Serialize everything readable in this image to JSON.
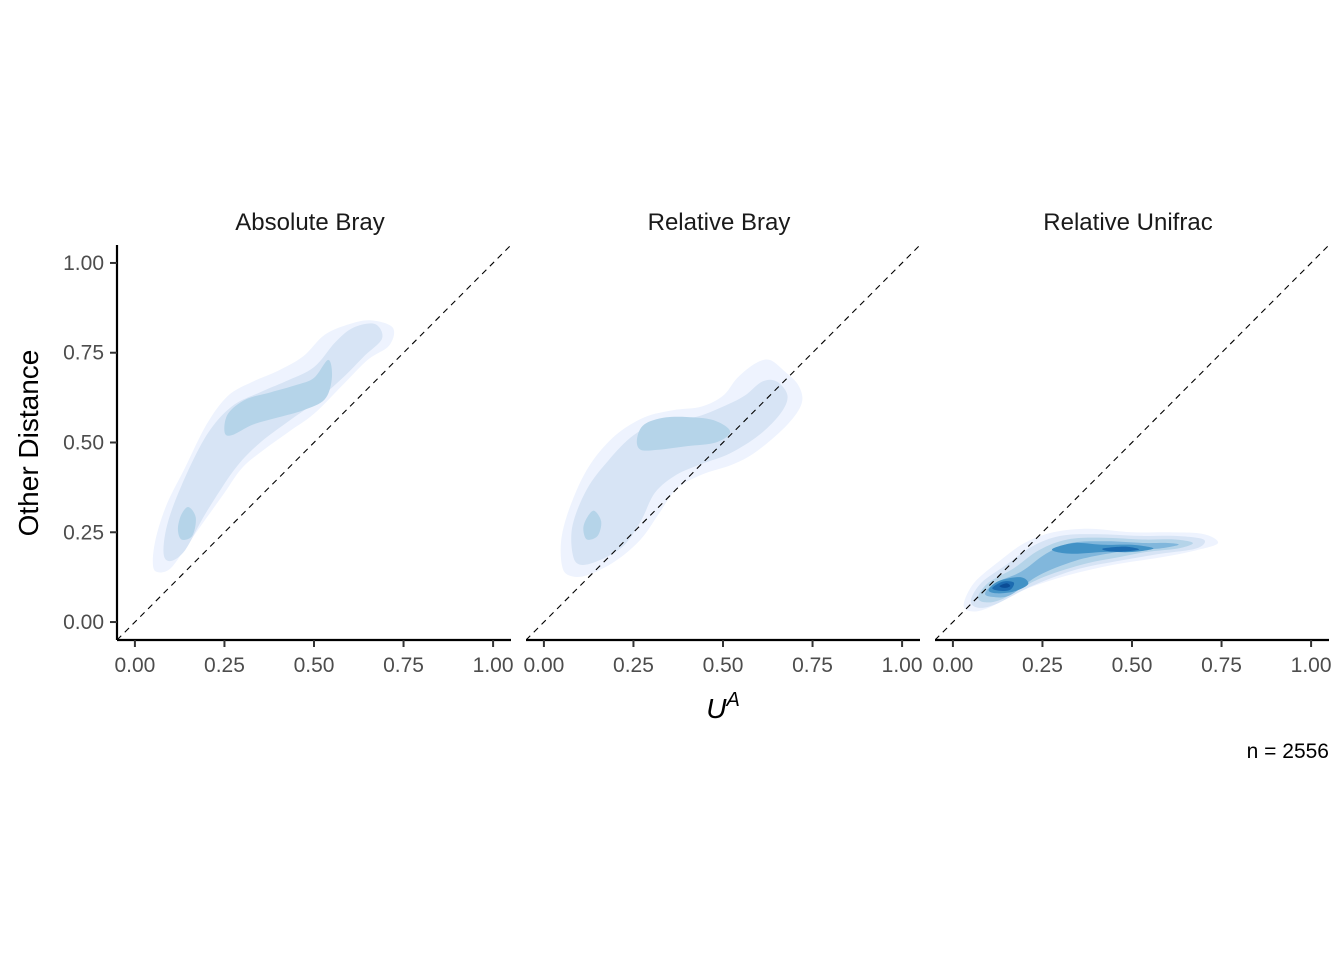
{
  "chart_data": {
    "type": "contour",
    "ylabel": "Other Distance",
    "xlabel_base": "U",
    "xlabel_sup": "A",
    "caption": "n = 2556",
    "xlim": [
      -0.05,
      1.05
    ],
    "ylim": [
      -0.05,
      1.05
    ],
    "x_ticks": [
      0,
      0.25,
      0.5,
      0.75,
      1
    ],
    "x_tick_labels": [
      "0.00",
      "0.25",
      "0.50",
      "0.75",
      "1.00"
    ],
    "y_ticks": [
      0,
      0.25,
      0.5,
      0.75,
      1
    ],
    "y_tick_labels": [
      "0.00",
      "0.25",
      "0.50",
      "0.75",
      "1.00"
    ],
    "reference_line": {
      "slope": 1,
      "intercept": 0,
      "style": "dashed"
    },
    "level_colors": [
      "#eef3fe",
      "#d7e4f5",
      "#b5d4e9",
      "#81b7dc",
      "#4292c6",
      "#1c6bb0",
      "#0b4d96"
    ],
    "panels": [
      {
        "title": "Absolute Bray",
        "levels": [
          {
            "level": 1,
            "points": [
              [
                0.05,
                0.17
              ],
              [
                0.06,
                0.24
              ],
              [
                0.09,
                0.33
              ],
              [
                0.14,
                0.43
              ],
              [
                0.2,
                0.55
              ],
              [
                0.26,
                0.63
              ],
              [
                0.33,
                0.67
              ],
              [
                0.4,
                0.7
              ],
              [
                0.47,
                0.74
              ],
              [
                0.53,
                0.8
              ],
              [
                0.6,
                0.83
              ],
              [
                0.66,
                0.84
              ],
              [
                0.72,
                0.82
              ],
              [
                0.71,
                0.77
              ],
              [
                0.65,
                0.73
              ],
              [
                0.58,
                0.66
              ],
              [
                0.5,
                0.58
              ],
              [
                0.43,
                0.53
              ],
              [
                0.36,
                0.48
              ],
              [
                0.3,
                0.43
              ],
              [
                0.25,
                0.36
              ],
              [
                0.2,
                0.29
              ],
              [
                0.15,
                0.22
              ],
              [
                0.1,
                0.15
              ],
              [
                0.06,
                0.14
              ]
            ]
          },
          {
            "level": 2,
            "points": [
              [
                0.08,
                0.19
              ],
              [
                0.09,
                0.27
              ],
              [
                0.13,
                0.38
              ],
              [
                0.2,
                0.52
              ],
              [
                0.27,
                0.6
              ],
              [
                0.35,
                0.64
              ],
              [
                0.42,
                0.67
              ],
              [
                0.5,
                0.71
              ],
              [
                0.56,
                0.78
              ],
              [
                0.61,
                0.82
              ],
              [
                0.67,
                0.83
              ],
              [
                0.69,
                0.79
              ],
              [
                0.64,
                0.74
              ],
              [
                0.58,
                0.68
              ],
              [
                0.5,
                0.61
              ],
              [
                0.43,
                0.56
              ],
              [
                0.35,
                0.5
              ],
              [
                0.29,
                0.44
              ],
              [
                0.24,
                0.37
              ],
              [
                0.19,
                0.29
              ],
              [
                0.14,
                0.2
              ],
              [
                0.1,
                0.17
              ]
            ]
          },
          {
            "level": 3,
            "points": [
              [
                0.25,
                0.53
              ],
              [
                0.26,
                0.58
              ],
              [
                0.31,
                0.62
              ],
              [
                0.38,
                0.64
              ],
              [
                0.45,
                0.66
              ],
              [
                0.5,
                0.68
              ],
              [
                0.54,
                0.73
              ],
              [
                0.55,
                0.68
              ],
              [
                0.53,
                0.62
              ],
              [
                0.47,
                0.59
              ],
              [
                0.4,
                0.57
              ],
              [
                0.33,
                0.55
              ],
              [
                0.27,
                0.52
              ]
            ]
          },
          {
            "level": 3,
            "points": [
              [
                0.12,
                0.26
              ],
              [
                0.13,
                0.3
              ],
              [
                0.15,
                0.32
              ],
              [
                0.17,
                0.29
              ],
              [
                0.16,
                0.24
              ],
              [
                0.13,
                0.23
              ]
            ]
          }
        ]
      },
      {
        "title": "Relative Bray",
        "levels": [
          {
            "level": 1,
            "points": [
              [
                0.05,
                0.16
              ],
              [
                0.05,
                0.24
              ],
              [
                0.08,
                0.34
              ],
              [
                0.13,
                0.44
              ],
              [
                0.2,
                0.52
              ],
              [
                0.28,
                0.57
              ],
              [
                0.36,
                0.59
              ],
              [
                0.44,
                0.6
              ],
              [
                0.5,
                0.63
              ],
              [
                0.54,
                0.68
              ],
              [
                0.59,
                0.72
              ],
              [
                0.63,
                0.73
              ],
              [
                0.67,
                0.7
              ],
              [
                0.71,
                0.66
              ],
              [
                0.72,
                0.61
              ],
              [
                0.68,
                0.55
              ],
              [
                0.6,
                0.48
              ],
              [
                0.53,
                0.44
              ],
              [
                0.44,
                0.41
              ],
              [
                0.37,
                0.37
              ],
              [
                0.32,
                0.3
              ],
              [
                0.27,
                0.23
              ],
              [
                0.2,
                0.17
              ],
              [
                0.12,
                0.13
              ],
              [
                0.07,
                0.13
              ]
            ]
          },
          {
            "level": 2,
            "points": [
              [
                0.08,
                0.19
              ],
              [
                0.08,
                0.27
              ],
              [
                0.12,
                0.37
              ],
              [
                0.18,
                0.45
              ],
              [
                0.25,
                0.52
              ],
              [
                0.33,
                0.56
              ],
              [
                0.42,
                0.57
              ],
              [
                0.5,
                0.6
              ],
              [
                0.56,
                0.63
              ],
              [
                0.61,
                0.67
              ],
              [
                0.65,
                0.67
              ],
              [
                0.68,
                0.63
              ],
              [
                0.66,
                0.58
              ],
              [
                0.6,
                0.52
              ],
              [
                0.52,
                0.47
              ],
              [
                0.44,
                0.44
              ],
              [
                0.37,
                0.41
              ],
              [
                0.31,
                0.36
              ],
              [
                0.27,
                0.28
              ],
              [
                0.22,
                0.21
              ],
              [
                0.15,
                0.17
              ],
              [
                0.1,
                0.16
              ]
            ]
          },
          {
            "level": 3,
            "points": [
              [
                0.26,
                0.51
              ],
              [
                0.28,
                0.55
              ],
              [
                0.34,
                0.57
              ],
              [
                0.42,
                0.57
              ],
              [
                0.48,
                0.56
              ],
              [
                0.52,
                0.53
              ],
              [
                0.48,
                0.5
              ],
              [
                0.4,
                0.49
              ],
              [
                0.32,
                0.48
              ],
              [
                0.27,
                0.48
              ]
            ]
          },
          {
            "level": 3,
            "points": [
              [
                0.11,
                0.26
              ],
              [
                0.12,
                0.29
              ],
              [
                0.14,
                0.31
              ],
              [
                0.16,
                0.28
              ],
              [
                0.15,
                0.24
              ],
              [
                0.12,
                0.23
              ]
            ]
          }
        ]
      },
      {
        "title": "Relative Unifrac",
        "levels": [
          {
            "level": 1,
            "points": [
              [
                0.03,
                0.05
              ],
              [
                0.06,
                0.11
              ],
              [
                0.13,
                0.17
              ],
              [
                0.2,
                0.22
              ],
              [
                0.28,
                0.25
              ],
              [
                0.38,
                0.26
              ],
              [
                0.5,
                0.25
              ],
              [
                0.6,
                0.25
              ],
              [
                0.7,
                0.245
              ],
              [
                0.74,
                0.22
              ],
              [
                0.68,
                0.2
              ],
              [
                0.58,
                0.18
              ],
              [
                0.45,
                0.16
              ],
              [
                0.32,
                0.13
              ],
              [
                0.2,
                0.09
              ],
              [
                0.1,
                0.04
              ],
              [
                0.05,
                0.03
              ]
            ]
          },
          {
            "level": 2,
            "points": [
              [
                0.05,
                0.06
              ],
              [
                0.08,
                0.11
              ],
              [
                0.15,
                0.16
              ],
              [
                0.22,
                0.21
              ],
              [
                0.3,
                0.24
              ],
              [
                0.4,
                0.245
              ],
              [
                0.52,
                0.24
              ],
              [
                0.62,
                0.24
              ],
              [
                0.7,
                0.23
              ],
              [
                0.68,
                0.205
              ],
              [
                0.58,
                0.19
              ],
              [
                0.46,
                0.17
              ],
              [
                0.34,
                0.145
              ],
              [
                0.22,
                0.1
              ],
              [
                0.12,
                0.05
              ],
              [
                0.07,
                0.04
              ]
            ]
          },
          {
            "level": 3,
            "points": [
              [
                0.07,
                0.07
              ],
              [
                0.1,
                0.11
              ],
              [
                0.17,
                0.15
              ],
              [
                0.24,
                0.2
              ],
              [
                0.32,
                0.23
              ],
              [
                0.42,
                0.235
              ],
              [
                0.53,
                0.23
              ],
              [
                0.62,
                0.23
              ],
              [
                0.67,
                0.22
              ],
              [
                0.63,
                0.205
              ],
              [
                0.54,
                0.195
              ],
              [
                0.46,
                0.18
              ],
              [
                0.36,
                0.16
              ],
              [
                0.24,
                0.12
              ],
              [
                0.14,
                0.065
              ],
              [
                0.09,
                0.055
              ]
            ]
          },
          {
            "level": 4,
            "points": [
              [
                0.09,
                0.08
              ],
              [
                0.12,
                0.11
              ],
              [
                0.19,
                0.14
              ],
              [
                0.26,
                0.19
              ],
              [
                0.33,
                0.22
              ],
              [
                0.43,
                0.225
              ],
              [
                0.53,
                0.22
              ],
              [
                0.6,
                0.22
              ],
              [
                0.63,
                0.215
              ],
              [
                0.58,
                0.205
              ],
              [
                0.5,
                0.2
              ],
              [
                0.43,
                0.19
              ],
              [
                0.34,
                0.17
              ],
              [
                0.24,
                0.13
              ],
              [
                0.16,
                0.075
              ],
              [
                0.11,
                0.07
              ]
            ]
          },
          {
            "level": 5,
            "points": [
              [
                0.1,
                0.09
              ],
              [
                0.13,
                0.115
              ],
              [
                0.19,
                0.125
              ],
              [
                0.21,
                0.105
              ],
              [
                0.17,
                0.085
              ],
              [
                0.12,
                0.08
              ]
            ]
          },
          {
            "level": 5,
            "points": [
              [
                0.28,
                0.205
              ],
              [
                0.34,
                0.22
              ],
              [
                0.42,
                0.215
              ],
              [
                0.5,
                0.215
              ],
              [
                0.56,
                0.205
              ],
              [
                0.5,
                0.195
              ],
              [
                0.42,
                0.195
              ],
              [
                0.34,
                0.19
              ],
              [
                0.29,
                0.195
              ]
            ]
          },
          {
            "level": 6,
            "points": [
              [
                0.11,
                0.095
              ],
              [
                0.14,
                0.113
              ],
              [
                0.17,
                0.11
              ],
              [
                0.16,
                0.09
              ],
              [
                0.13,
                0.087
              ]
            ]
          },
          {
            "level": 6,
            "points": [
              [
                0.42,
                0.205
              ],
              [
                0.48,
                0.21
              ],
              [
                0.52,
                0.202
              ],
              [
                0.47,
                0.196
              ],
              [
                0.43,
                0.198
              ]
            ]
          },
          {
            "level": 7,
            "points": [
              [
                0.13,
                0.1
              ],
              [
                0.15,
                0.108
              ],
              [
                0.16,
                0.1
              ],
              [
                0.145,
                0.095
              ]
            ]
          }
        ]
      }
    ]
  }
}
